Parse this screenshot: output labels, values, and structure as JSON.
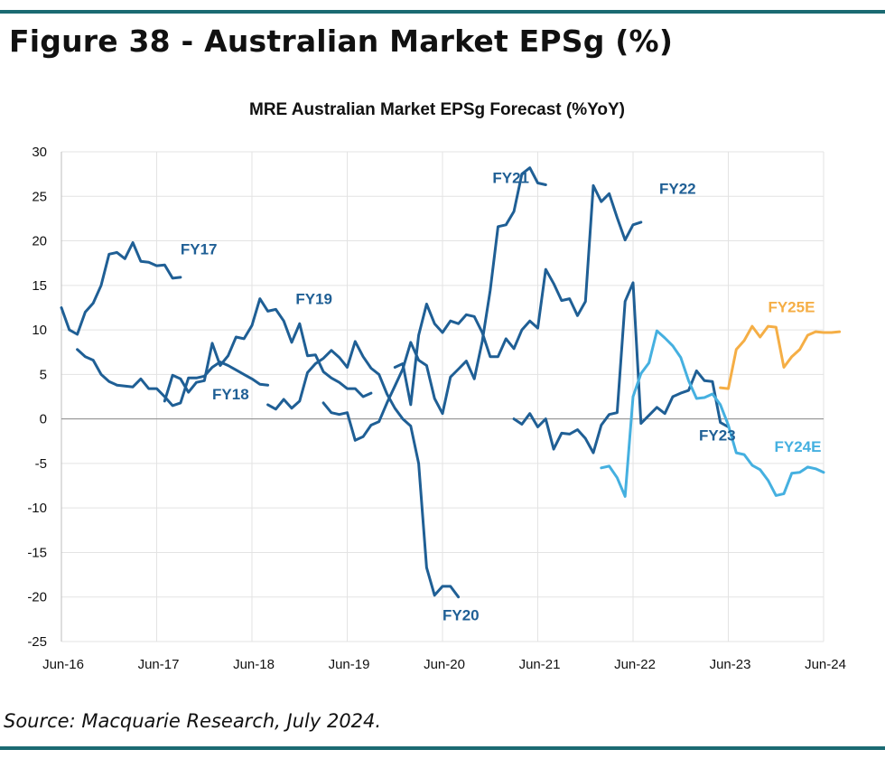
{
  "figure_title": "Figure 38 - Australian Market EPSg (%)",
  "source_note": "Source: Macquarie Research, July 2024.",
  "colors": {
    "dark_blue": "#1f5f95",
    "light_blue": "#45b0e0",
    "orange": "#f5ae45",
    "rule": "#1b6a72"
  },
  "chart_data": {
    "type": "line",
    "title": "MRE Australian Market EPSg Forecast (%YoY)",
    "xlabel": "",
    "ylabel": "",
    "x_unit": "months since Jun-16",
    "xlim": [
      0,
      96
    ],
    "ylim": [
      -25,
      30
    ],
    "yticks": [
      30,
      25,
      20,
      15,
      10,
      5,
      0,
      -5,
      -10,
      -15,
      -20,
      -25
    ],
    "xticks": [
      {
        "label": "Jun-16",
        "x": 0
      },
      {
        "label": "Jun-17",
        "x": 12
      },
      {
        "label": "Jun-18",
        "x": 24
      },
      {
        "label": "Jun-19",
        "x": 36
      },
      {
        "label": "Jun-20",
        "x": 48
      },
      {
        "label": "Jun-21",
        "x": 60
      },
      {
        "label": "Jun-22",
        "x": 72
      },
      {
        "label": "Jun-23",
        "x": 84
      },
      {
        "label": "Jun-24",
        "x": 96
      }
    ],
    "grid": true,
    "series": [
      {
        "name": "FY17",
        "color": "#1f5f95",
        "label_x": 15,
        "label_y": 18.5,
        "points": [
          [
            0,
            12.5
          ],
          [
            1,
            10
          ],
          [
            2,
            9.5
          ],
          [
            3,
            12
          ],
          [
            4,
            13
          ],
          [
            5,
            15
          ],
          [
            6,
            18.5
          ],
          [
            7,
            18.7
          ],
          [
            8,
            18
          ],
          [
            9,
            19.8
          ],
          [
            10,
            17.7
          ],
          [
            11,
            17.6
          ],
          [
            12,
            17.2
          ],
          [
            13,
            17.3
          ],
          [
            14,
            15.8
          ],
          [
            15,
            15.9
          ]
        ]
      },
      {
        "name": "FY18",
        "color": "#1f5f95",
        "label_x": 19,
        "label_y": 2.2,
        "points": [
          [
            2,
            7.8
          ],
          [
            3,
            7
          ],
          [
            4,
            6.6
          ],
          [
            5,
            5
          ],
          [
            6,
            4.2
          ],
          [
            7,
            3.8
          ],
          [
            8,
            3.7
          ],
          [
            9,
            3.6
          ],
          [
            10,
            4.5
          ],
          [
            11,
            3.4
          ],
          [
            12,
            3.4
          ],
          [
            13,
            2.5
          ],
          [
            14,
            1.5
          ],
          [
            15,
            1.8
          ],
          [
            16,
            4.6
          ],
          [
            17,
            4.6
          ],
          [
            18,
            4.8
          ],
          [
            19,
            5.8
          ],
          [
            20,
            6.4
          ],
          [
            21,
            6
          ],
          [
            22,
            5.5
          ],
          [
            23,
            5
          ],
          [
            24,
            4.5
          ],
          [
            25,
            3.9
          ],
          [
            26,
            3.8
          ]
        ]
      },
      {
        "name": "FY19",
        "color": "#1f5f95",
        "label_x": 29.5,
        "label_y": 12.9,
        "points": [
          [
            13,
            2
          ],
          [
            14,
            4.9
          ],
          [
            15,
            4.5
          ],
          [
            16,
            3
          ],
          [
            17,
            4.1
          ],
          [
            18,
            4.3
          ],
          [
            19,
            8.5
          ],
          [
            20,
            6
          ],
          [
            21,
            7.1
          ],
          [
            22,
            9.2
          ],
          [
            23,
            9
          ],
          [
            24,
            10.5
          ],
          [
            25,
            13.5
          ],
          [
            26,
            12.1
          ],
          [
            27,
            12.3
          ],
          [
            28,
            11
          ],
          [
            29,
            8.6
          ],
          [
            30,
            10.7
          ],
          [
            31,
            7.1
          ],
          [
            32,
            7.2
          ],
          [
            33,
            5.3
          ],
          [
            34,
            4.6
          ],
          [
            35,
            4.1
          ],
          [
            36,
            3.4
          ],
          [
            37,
            3.4
          ],
          [
            38,
            2.5
          ],
          [
            39,
            2.9
          ]
        ]
      },
      {
        "name": "FY20",
        "color": "#1f5f95",
        "label_x": 48,
        "label_y": -22.6,
        "points": [
          [
            26,
            1.6
          ],
          [
            27,
            1.1
          ],
          [
            28,
            2.2
          ],
          [
            29,
            1.2
          ],
          [
            30,
            2
          ],
          [
            31,
            5.2
          ],
          [
            32,
            6.2
          ],
          [
            33,
            6.8
          ],
          [
            34,
            7.7
          ],
          [
            35,
            6.9
          ],
          [
            36,
            5.8
          ],
          [
            37,
            8.7
          ],
          [
            38,
            7
          ],
          [
            39,
            5.7
          ],
          [
            40,
            5
          ],
          [
            41,
            2.8
          ],
          [
            42,
            1.2
          ],
          [
            43,
            0
          ],
          [
            44,
            -0.8
          ],
          [
            45,
            -5
          ],
          [
            46,
            -16.7
          ],
          [
            47,
            -19.8
          ],
          [
            48,
            -18.8
          ],
          [
            49,
            -18.8
          ],
          [
            50,
            -20
          ]
        ]
      },
      {
        "name": "FY21",
        "color": "#1f5f95",
        "label_x": 54.3,
        "label_y": 26.5,
        "points": [
          [
            33,
            1.8
          ],
          [
            34,
            0.7
          ],
          [
            35,
            0.5
          ],
          [
            36,
            0.7
          ],
          [
            37,
            -2.4
          ],
          [
            38,
            -2
          ],
          [
            39,
            -0.7
          ],
          [
            40,
            -0.3
          ],
          [
            41,
            1.8
          ],
          [
            42,
            3.7
          ],
          [
            43,
            5.6
          ],
          [
            44,
            8.6
          ],
          [
            45,
            6.6
          ],
          [
            46,
            6
          ],
          [
            47,
            2.3
          ],
          [
            48,
            0.6
          ],
          [
            49,
            4.7
          ],
          [
            50,
            5.6
          ],
          [
            51,
            6.5
          ],
          [
            52,
            4.5
          ],
          [
            53,
            8.7
          ],
          [
            54,
            14.4
          ],
          [
            55,
            21.6
          ],
          [
            56,
            21.8
          ],
          [
            57,
            23.3
          ],
          [
            58,
            27.5
          ],
          [
            59,
            28.2
          ],
          [
            60,
            26.5
          ],
          [
            61,
            26.3
          ]
        ]
      },
      {
        "name": "FY22",
        "color": "#1f5f95",
        "label_x": 75.3,
        "label_y": 25.3,
        "points": [
          [
            42,
            5.8
          ],
          [
            43,
            6.2
          ],
          [
            44,
            1.6
          ],
          [
            45,
            9.4
          ],
          [
            46,
            12.9
          ],
          [
            47,
            10.7
          ],
          [
            48,
            9.7
          ],
          [
            49,
            11
          ],
          [
            50,
            10.7
          ],
          [
            51,
            11.7
          ],
          [
            52,
            11.5
          ],
          [
            53,
            9.7
          ],
          [
            54,
            7
          ],
          [
            55,
            7
          ],
          [
            56,
            9
          ],
          [
            57,
            7.9
          ],
          [
            58,
            10
          ],
          [
            59,
            11
          ],
          [
            60,
            10.2
          ],
          [
            61,
            16.8
          ],
          [
            62,
            15.2
          ],
          [
            63,
            13.3
          ],
          [
            64,
            13.5
          ],
          [
            65,
            11.6
          ],
          [
            66,
            13.2
          ],
          [
            67,
            26.2
          ],
          [
            68,
            24.4
          ],
          [
            69,
            25.3
          ],
          [
            70,
            22.6
          ],
          [
            71,
            20.1
          ],
          [
            72,
            21.8
          ],
          [
            73,
            22.1
          ]
        ]
      },
      {
        "name": "FY23",
        "color": "#1f5f95",
        "label_x": 80.3,
        "label_y": -2.4,
        "points": [
          [
            57,
            0
          ],
          [
            58,
            -0.6
          ],
          [
            59,
            0.6
          ],
          [
            60,
            -0.9
          ],
          [
            61,
            0
          ],
          [
            62,
            -3.4
          ],
          [
            63,
            -1.6
          ],
          [
            64,
            -1.7
          ],
          [
            65,
            -1.2
          ],
          [
            66,
            -2.2
          ],
          [
            67,
            -3.8
          ],
          [
            68,
            -0.7
          ],
          [
            69,
            0.5
          ],
          [
            70,
            0.7
          ],
          [
            71,
            13.2
          ],
          [
            72,
            15.3
          ],
          [
            73,
            -0.5
          ],
          [
            74,
            0.4
          ],
          [
            75,
            1.3
          ],
          [
            76,
            0.6
          ],
          [
            77,
            2.5
          ],
          [
            78,
            2.9
          ],
          [
            79,
            3.2
          ],
          [
            80,
            5.4
          ],
          [
            81,
            4.3
          ],
          [
            82,
            4.2
          ],
          [
            83,
            -0.4
          ],
          [
            84,
            -0.9
          ]
        ]
      },
      {
        "name": "FY24E",
        "color": "#45b0e0",
        "label_x": 89.8,
        "label_y": -3.7,
        "points": [
          [
            68,
            -5.5
          ],
          [
            69,
            -5.3
          ],
          [
            70,
            -6.6
          ],
          [
            71,
            -8.7
          ],
          [
            72,
            2.5
          ],
          [
            73,
            5.1
          ],
          [
            74,
            6.3
          ],
          [
            75,
            9.9
          ],
          [
            76,
            9.1
          ],
          [
            77,
            8.2
          ],
          [
            78,
            6.9
          ],
          [
            79,
            4.3
          ],
          [
            80,
            2.3
          ],
          [
            81,
            2.4
          ],
          [
            82,
            2.8
          ],
          [
            83,
            1.6
          ],
          [
            84,
            -0.7
          ],
          [
            85,
            -3.8
          ],
          [
            86,
            -4
          ],
          [
            87,
            -5.2
          ],
          [
            88,
            -5.7
          ],
          [
            89,
            -6.9
          ],
          [
            90,
            -8.6
          ],
          [
            91,
            -8.4
          ],
          [
            92,
            -6.1
          ],
          [
            93,
            -6
          ],
          [
            94,
            -5.4
          ],
          [
            95,
            -5.6
          ],
          [
            96,
            -6
          ]
        ]
      },
      {
        "name": "FY25E",
        "color": "#f5ae45",
        "label_x": 89,
        "label_y": 12,
        "points": [
          [
            83,
            3.5
          ],
          [
            84,
            3.4
          ],
          [
            85,
            7.8
          ],
          [
            86,
            8.8
          ],
          [
            87,
            10.4
          ],
          [
            88,
            9.2
          ],
          [
            89,
            10.4
          ],
          [
            90,
            10.3
          ],
          [
            91,
            5.8
          ],
          [
            92,
            7
          ],
          [
            93,
            7.8
          ],
          [
            94,
            9.4
          ],
          [
            95,
            9.8
          ],
          [
            96,
            9.7
          ],
          [
            97,
            9.7
          ],
          [
            98,
            9.8
          ]
        ]
      }
    ]
  }
}
